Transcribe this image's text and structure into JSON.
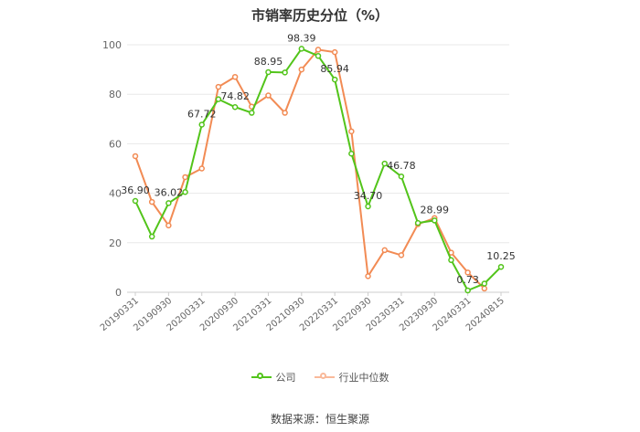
{
  "chart_data": {
    "type": "line",
    "title": "市销率历史分位（%）",
    "xlabel": "",
    "ylabel": "",
    "ylim": [
      0,
      100
    ],
    "yticks": [
      0,
      20,
      40,
      60,
      80,
      100
    ],
    "x_tick_labels": [
      "20190331",
      "20190930",
      "20200331",
      "20200930",
      "20210331",
      "20210930",
      "20220331",
      "20220930",
      "20230331",
      "20230930",
      "20240331",
      "20240815"
    ],
    "series": [
      {
        "name": "公司",
        "color": "#52c41a",
        "values": [
          36.9,
          22.5,
          36.02,
          40.5,
          67.72,
          78.0,
          74.82,
          72.5,
          88.95,
          88.8,
          98.39,
          95.5,
          85.94,
          56.0,
          34.7,
          52.0,
          46.78,
          28.0,
          28.99,
          13.0,
          0.73,
          3.5,
          10.25
        ],
        "labels": {
          "0": "36.90",
          "2": "36.02",
          "4": "67.72",
          "6": "74.82",
          "8": "88.95",
          "10": "98.39",
          "12": "85.94",
          "14": "34.70",
          "16": "46.78",
          "18": "28.99",
          "20": "0.73",
          "22": "10.25"
        }
      },
      {
        "name": "行业中位数",
        "color": "#f28b54",
        "values": [
          55.0,
          36.5,
          27.0,
          46.5,
          50.0,
          83.0,
          87.0,
          75.0,
          79.5,
          72.5,
          90.0,
          98.0,
          97.0,
          65.0,
          6.5,
          17.0,
          15.0,
          27.5,
          30.0,
          16.0,
          8.0,
          1.5,
          null
        ]
      }
    ]
  },
  "source": "数据来源：恒生聚源"
}
